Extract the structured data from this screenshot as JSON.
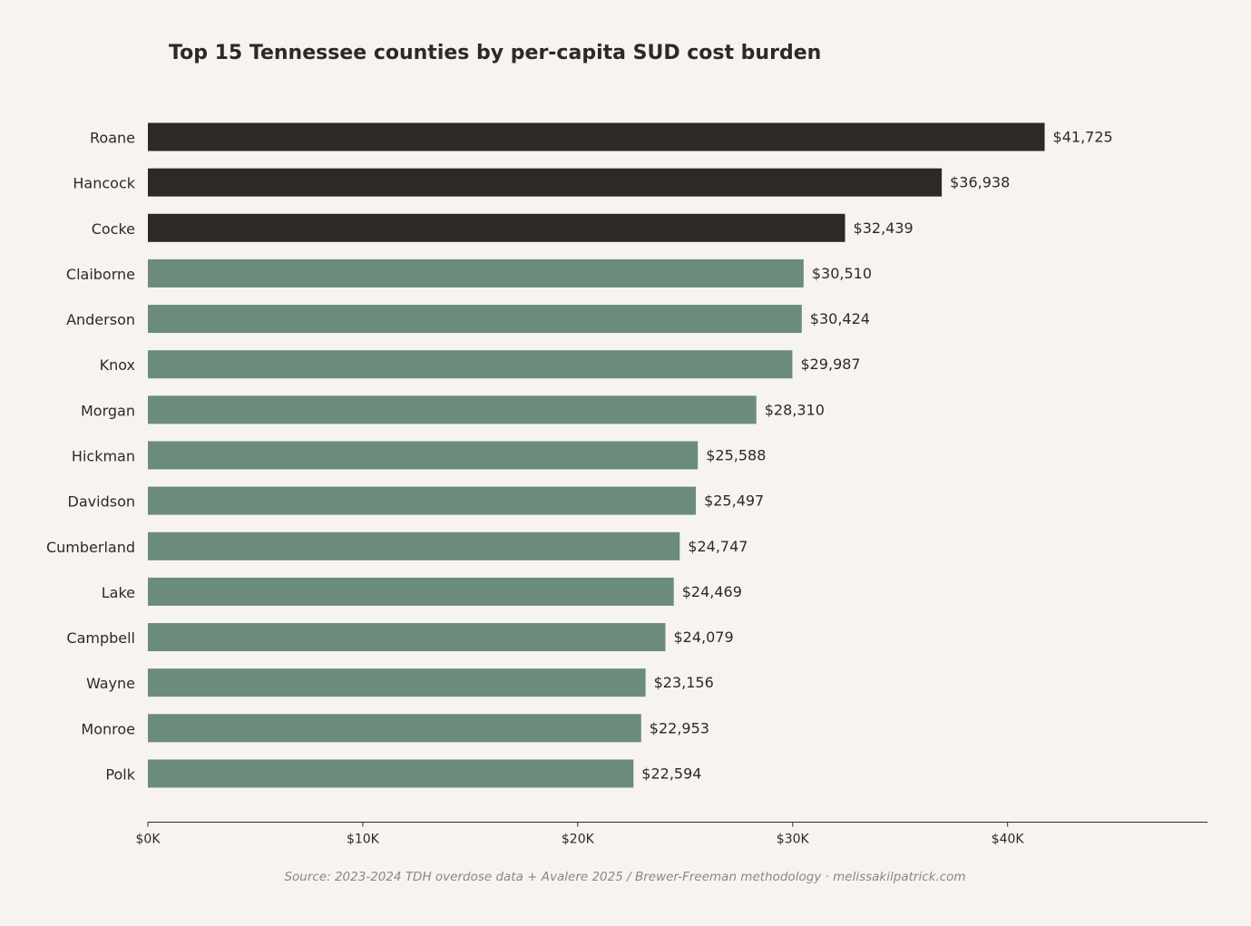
{
  "chart_data": {
    "type": "barh",
    "title": "Top 15 Tennessee counties by per-capita SUD cost burden",
    "source": "Source: 2023-2024 TDH overdose data + Avalere 2025 / Brewer-Freeman methodology  ·  melissakilpatrick.com",
    "categories": [
      "Roane",
      "Hancock",
      "Cocke",
      "Claiborne",
      "Anderson",
      "Knox",
      "Morgan",
      "Hickman",
      "Davidson",
      "Cumberland",
      "Lake",
      "Campbell",
      "Wayne",
      "Monroe",
      "Polk"
    ],
    "values": [
      41725,
      36938,
      32439,
      30510,
      30424,
      29987,
      28310,
      25588,
      25497,
      24747,
      24469,
      24079,
      23156,
      22953,
      22594
    ],
    "value_labels": [
      "$41,725",
      "$36,938",
      "$32,439",
      "$30,510",
      "$30,424",
      "$29,987",
      "$28,310",
      "$25,588",
      "$25,497",
      "$24,747",
      "$24,469",
      "$24,079",
      "$23,156",
      "$22,953",
      "$22,594"
    ],
    "colors": [
      "#2d2926",
      "#2d2926",
      "#2d2926",
      "#6b8c7a",
      "#6b8c7a",
      "#6b8c7a",
      "#6b8c7a",
      "#6b8c7a",
      "#6b8c7a",
      "#6b8c7a",
      "#6b8c7a",
      "#6b8c7a",
      "#6b8c7a",
      "#6b8c7a",
      "#6b8c7a"
    ],
    "xlim": [
      0,
      49300
    ],
    "xticks": [
      {
        "value": 0,
        "label": "$0K"
      },
      {
        "value": 10000,
        "label": "$10K"
      },
      {
        "value": 20000,
        "label": "$20K"
      },
      {
        "value": 30000,
        "label": "$30K"
      },
      {
        "value": 40000,
        "label": "$40K"
      }
    ],
    "grid": false
  }
}
